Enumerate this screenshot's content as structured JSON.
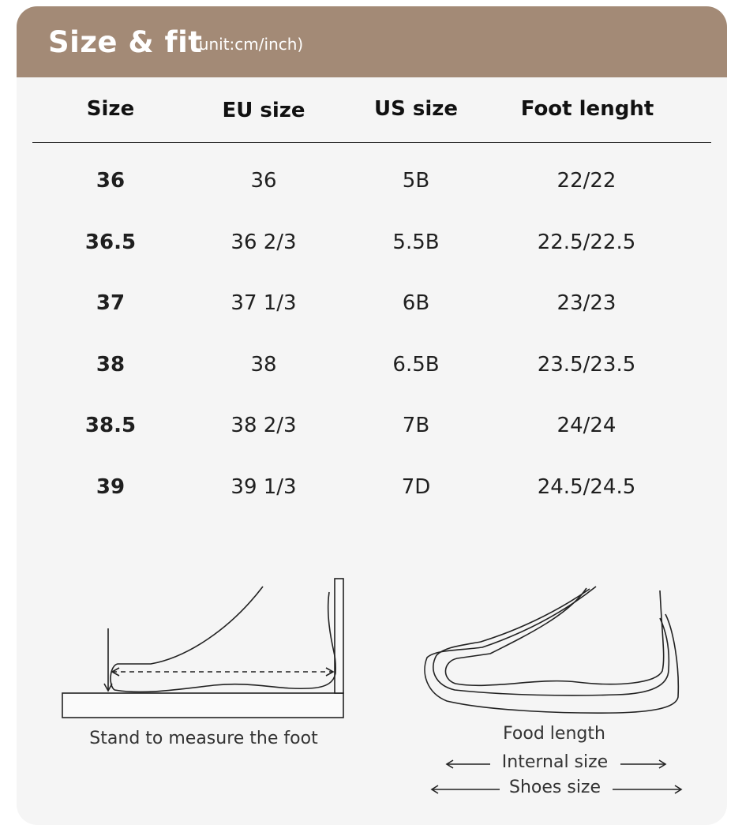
{
  "header": {
    "title": "Size & fit",
    "unit": "(unit:cm/inch)",
    "color": "#a38a76"
  },
  "table": {
    "columns": [
      "Size",
      "EU size",
      "US size",
      "Foot lenght"
    ],
    "rows": [
      [
        "36",
        "36",
        "5B",
        "22/22"
      ],
      [
        "36.5",
        "36 2/3",
        "5.5B",
        "22.5/22.5"
      ],
      [
        "37",
        "37 1/3",
        "6B",
        "23/23"
      ],
      [
        "38",
        "38",
        "6.5B",
        "23.5/23.5"
      ],
      [
        "38.5",
        "38 2/3",
        "7B",
        "24/24"
      ],
      [
        "39",
        "39 1/3",
        "7D",
        "24.5/24.5"
      ]
    ]
  },
  "illustrations": {
    "left_caption": "Stand to measure the foot",
    "right_captions": {
      "food_length": "Food length",
      "internal_size": "Internal size",
      "shoes_size": "Shoes size"
    }
  }
}
